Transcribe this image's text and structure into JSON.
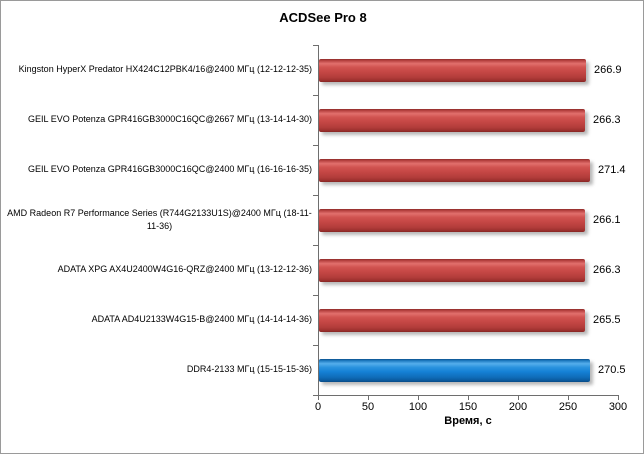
{
  "chart_data": {
    "type": "bar",
    "orientation": "horizontal",
    "title": "ACDSee Pro 8",
    "xlabel": "Время, с",
    "xlim": [
      0,
      300
    ],
    "xticks": [
      0,
      50,
      100,
      150,
      200,
      250,
      300
    ],
    "grid": false,
    "legend": "none",
    "categories": [
      "Kingston HyperX Predator HX424C12PBK4/16@2400 МГц (12-12-12-35)",
      "GEIL EVO Potenza GPR416GB3000C16QC@2667 МГц (13-14-14-30)",
      "GEIL EVO Potenza GPR416GB3000C16QC@2400 МГц (16-16-16-35)",
      "AMD Radeon R7 Performance Series (R744G2133U1S)@2400 МГц (18-11-11-36)",
      "ADATA XPG AX4U2400W4G16-QRZ@2400 МГц (13-12-12-36)",
      "ADATA AD4U2133W4G15-B@2400 МГц (14-14-14-36)",
      "DDR4-2133 МГц (15-15-15-36)"
    ],
    "values": [
      266.9,
      266.3,
      271.4,
      266.1,
      266.3,
      265.5,
      270.5
    ],
    "value_labels": [
      "266.9",
      "266.3",
      "271.4",
      "266.1",
      "266.3",
      "265.5",
      "270.5"
    ],
    "highlight_index": 6,
    "colors": {
      "bar_default": "#c64745",
      "bar_highlight": "#1581d6",
      "axis": "#6e6e6e",
      "text": "#000000"
    }
  }
}
